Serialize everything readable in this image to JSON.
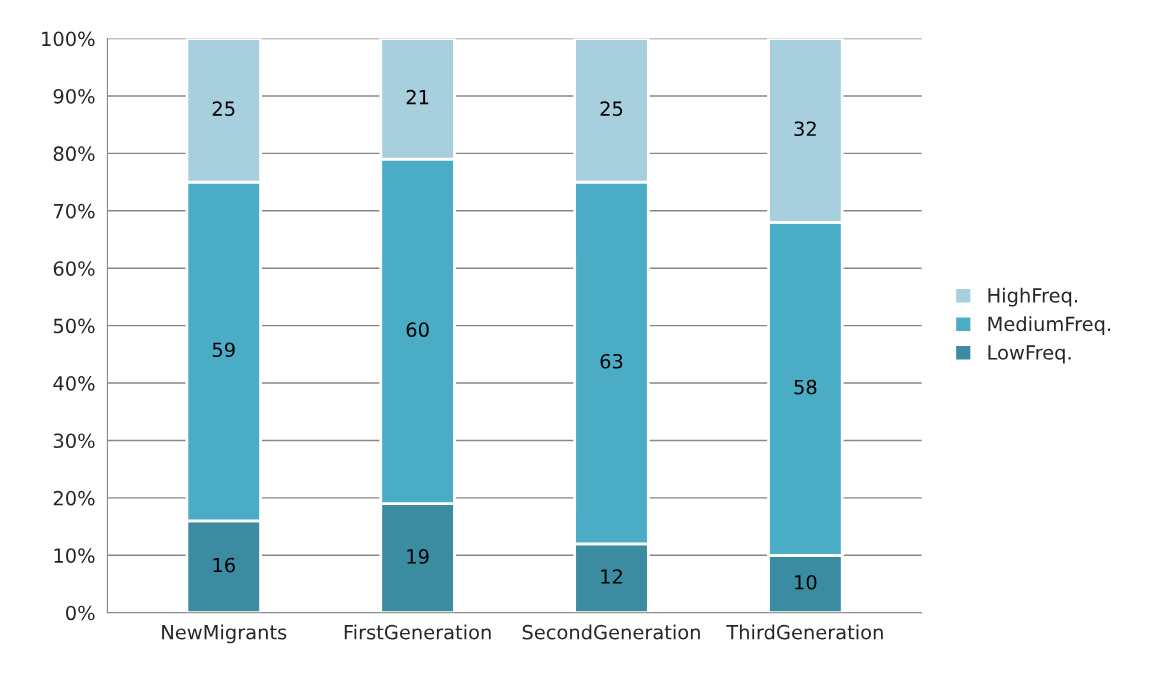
{
  "chart_data": {
    "type": "bar",
    "stacked": true,
    "data_labels": true,
    "grid": "y",
    "legend": "right",
    "categories": [
      "NewMigrants",
      "FirstGeneration",
      "SecondGeneration",
      "ThirdGeneration"
    ],
    "series": [
      {
        "name": "LowFreq.",
        "color": "#3b8ba1",
        "values": [
          16,
          19,
          12,
          10
        ]
      },
      {
        "name": "MediumFreq.",
        "color": "#4bacc6",
        "values": [
          59,
          60,
          63,
          58
        ]
      },
      {
        "name": "HighFreq.",
        "color": "#a7cfdd",
        "values": [
          25,
          21,
          25,
          32
        ]
      }
    ],
    "ylim": [
      0,
      100
    ],
    "yticks": [
      {
        "value": 0,
        "label": "0%"
      },
      {
        "value": 10,
        "label": "10%"
      },
      {
        "value": 20,
        "label": "20%"
      },
      {
        "value": 30,
        "label": "30%"
      },
      {
        "value": 40,
        "label": "40%"
      },
      {
        "value": 50,
        "label": "50%"
      },
      {
        "value": 60,
        "label": "60%"
      },
      {
        "value": 70,
        "label": "70%"
      },
      {
        "value": 80,
        "label": "80%"
      },
      {
        "value": 90,
        "label": "90%"
      },
      {
        "value": 100,
        "label": "100%"
      }
    ]
  }
}
